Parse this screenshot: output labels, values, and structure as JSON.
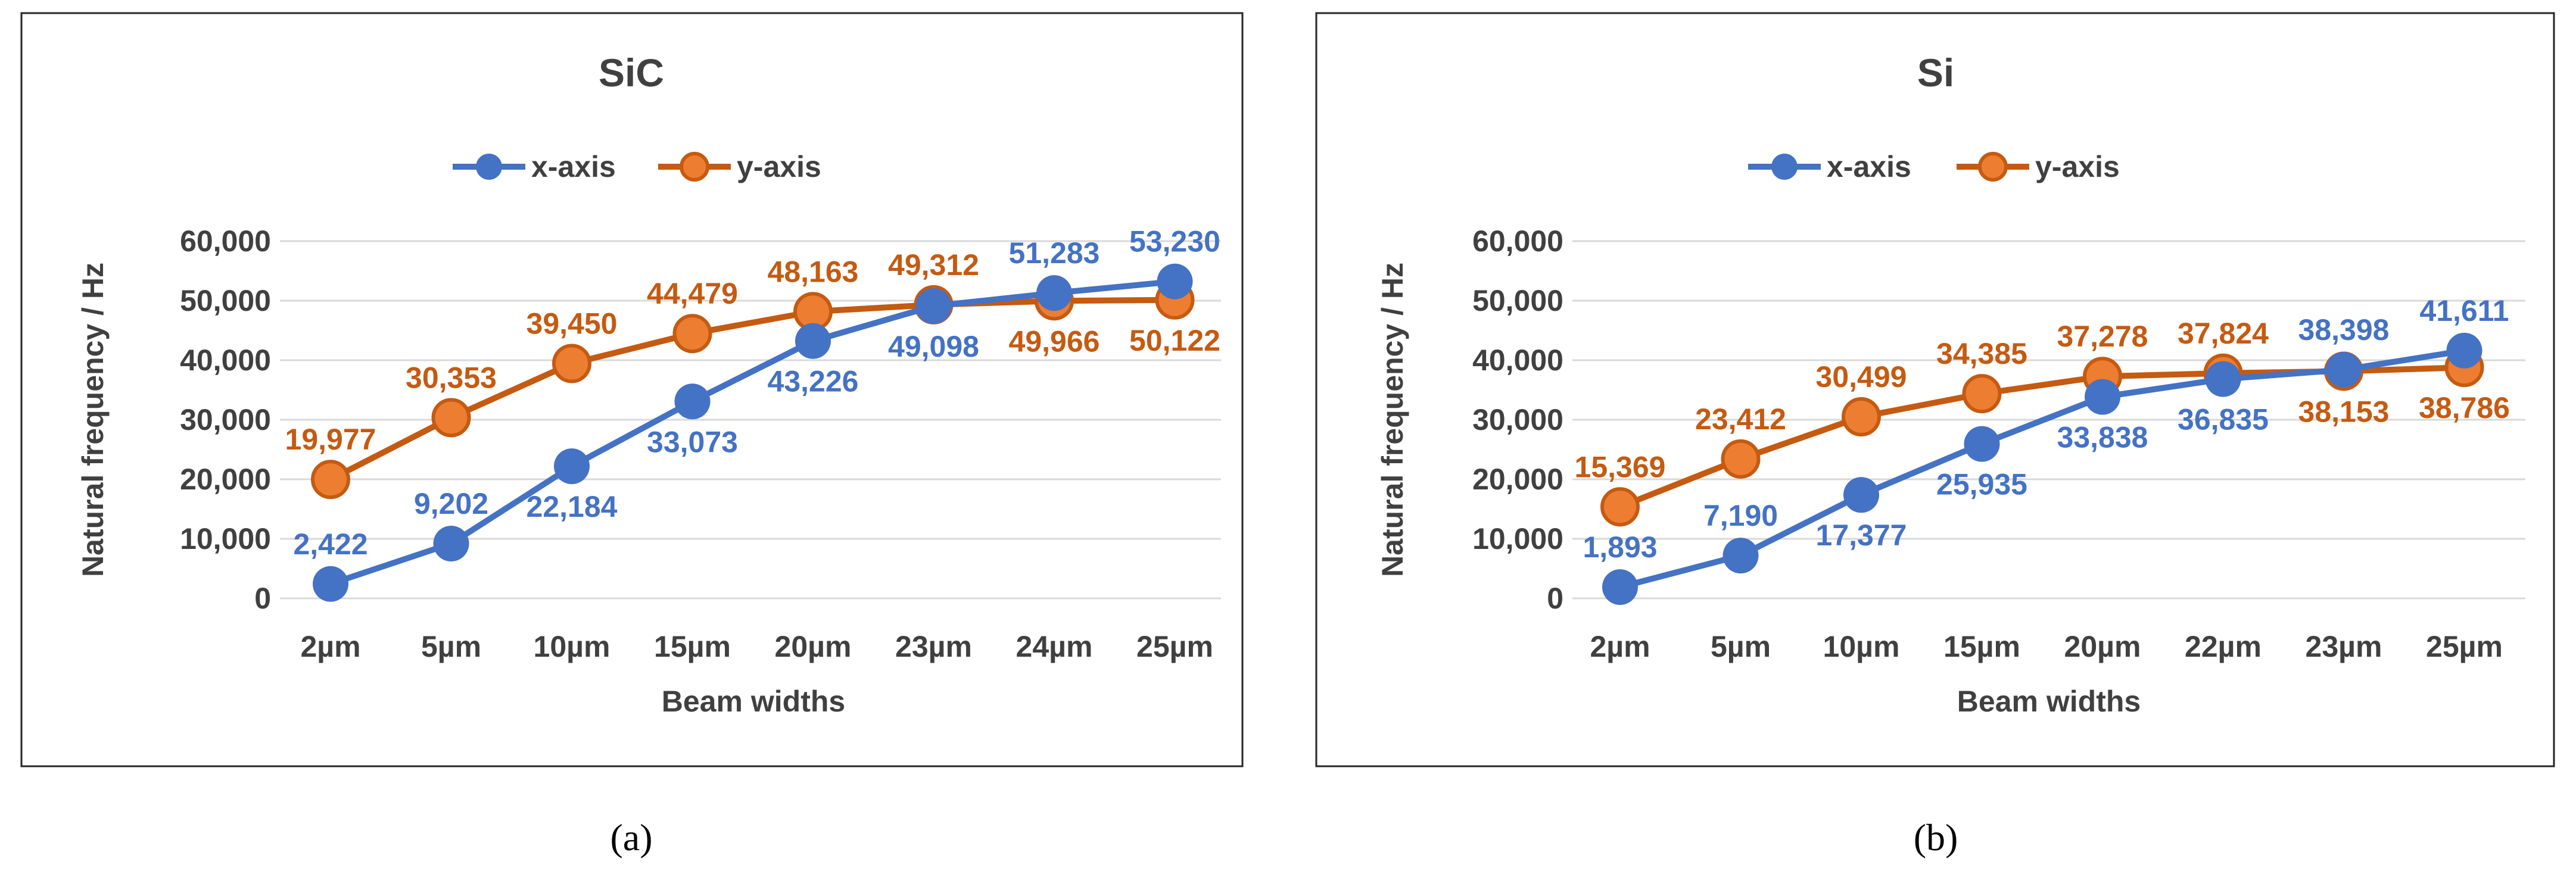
{
  "colors": {
    "x_axis": "#4472C4",
    "y_axis": "#C55A11"
  },
  "chart_data": [
    {
      "type": "line",
      "title": "SiC",
      "caption": "(a)",
      "xlabel": "Beam widths",
      "ylabel": "Natural frequency / Hz",
      "ylim": [
        0,
        60000
      ],
      "yticks": [
        "0",
        "10,000",
        "20,000",
        "30,000",
        "40,000",
        "50,000",
        "60,000"
      ],
      "categories": [
        "2µm",
        "5µm",
        "10µm",
        "15µm",
        "20µm",
        "23µm",
        "24µm",
        "25µm"
      ],
      "legend": "top-center",
      "grid": true,
      "series": [
        {
          "name": "x-axis",
          "values": [
            2422,
            9202,
            22184,
            33073,
            43226,
            49098,
            51283,
            53230
          ],
          "labels": [
            "2,422",
            "9,202",
            "22,184",
            "33,073",
            "43,226",
            "49,098",
            "51,283",
            "53,230"
          ],
          "label_pos": [
            "above",
            "above",
            "below",
            "below",
            "below",
            "below",
            "above",
            "above"
          ]
        },
        {
          "name": "y-axis",
          "values": [
            19977,
            30353,
            39450,
            44479,
            48163,
            49312,
            49966,
            50122
          ],
          "labels": [
            "19,977",
            "30,353",
            "39,450",
            "44,479",
            "48,163",
            "49,312",
            "49,966",
            "50,122"
          ],
          "label_pos": [
            "above",
            "above",
            "above",
            "above",
            "above",
            "above",
            "below",
            "below"
          ]
        }
      ]
    },
    {
      "type": "line",
      "title": "Si",
      "caption": "(b)",
      "xlabel": "Beam widths",
      "ylabel": "Natural frequency / Hz",
      "ylim": [
        0,
        60000
      ],
      "yticks": [
        "0",
        "10,000",
        "20,000",
        "30,000",
        "40,000",
        "50,000",
        "60,000"
      ],
      "categories": [
        "2µm",
        "5µm",
        "10µm",
        "15µm",
        "20µm",
        "22µm",
        "23µm",
        "25µm"
      ],
      "legend": "top-center",
      "grid": true,
      "series": [
        {
          "name": "x-axis",
          "values": [
            1893,
            7190,
            17377,
            25935,
            33838,
            36835,
            38398,
            41611
          ],
          "labels": [
            "1,893",
            "7,190",
            "17,377",
            "25,935",
            "33,838",
            "36,835",
            "38,398",
            "41,611"
          ],
          "label_pos": [
            "above",
            "above",
            "below",
            "below",
            "below",
            "below",
            "above",
            "above"
          ]
        },
        {
          "name": "y-axis",
          "values": [
            15369,
            23412,
            30499,
            34385,
            37278,
            37824,
            38153,
            38786
          ],
          "labels": [
            "15,369",
            "23,412",
            "30,499",
            "34,385",
            "37,278",
            "37,824",
            "38,153",
            "38,786"
          ],
          "label_pos": [
            "above",
            "above",
            "above",
            "above",
            "above",
            "above",
            "below",
            "below"
          ]
        }
      ]
    }
  ]
}
